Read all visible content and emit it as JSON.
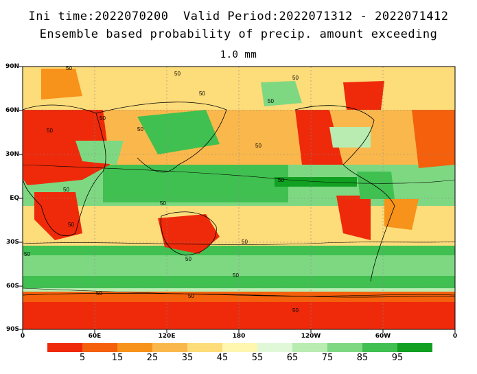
{
  "header": {
    "line1": "Ini time:2022070200  Valid Period:2022071312 - 2022071412",
    "line2": "Ensemble based probability of precip. amount exceeding",
    "line3": "1.0 mm"
  },
  "map": {
    "lat_labels": [
      "90N",
      "60N",
      "30N",
      "EQ",
      "30S",
      "60S",
      "90S"
    ],
    "lon_labels": [
      "0",
      "60E",
      "120E",
      "180",
      "120W",
      "60W",
      "0"
    ],
    "contour_labels": [
      "50",
      "50",
      "50",
      "50",
      "50",
      "50",
      "50",
      "50",
      "50",
      "50",
      "50",
      "50",
      "50",
      "50",
      "50",
      "50",
      "50",
      "50",
      "50",
      "50"
    ]
  },
  "colorbar": {
    "labels": [
      "5",
      "15",
      "25",
      "35",
      "45",
      "55",
      "65",
      "75",
      "85",
      "95"
    ],
    "colors": [
      "#ee2a0a",
      "#f4600c",
      "#f7921a",
      "#fab84c",
      "#fddc7a",
      "#fff6b0",
      "#e0f8d8",
      "#b8ecb0",
      "#7ed882",
      "#40c050",
      "#12a022"
    ]
  }
}
